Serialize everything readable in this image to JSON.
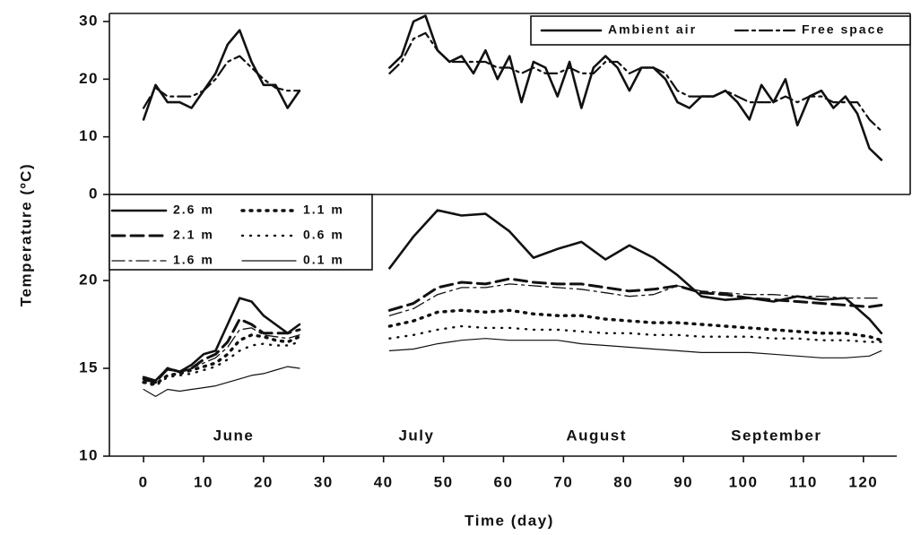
{
  "chart_data": [
    {
      "type": "line",
      "ylabel": "Temperature (ºC)",
      "x": [
        0,
        2,
        4,
        6,
        8,
        10,
        12,
        14,
        16,
        18,
        20,
        22,
        24,
        26,
        34,
        41,
        43,
        45,
        47,
        49,
        51,
        53,
        55,
        57,
        59,
        61,
        63,
        65,
        67,
        69,
        71,
        73,
        75,
        77,
        79,
        81,
        83,
        85,
        87,
        89,
        91,
        93,
        95,
        97,
        99,
        101,
        103,
        105,
        107,
        109,
        111,
        113,
        115,
        117,
        119,
        121,
        123
      ],
      "xlim": [
        -5.7,
        127.8
      ],
      "ylim": [
        0,
        31.4
      ],
      "yticks": [
        0,
        10,
        20,
        30
      ],
      "legend": "upper right",
      "series": [
        {
          "name": "Ambient air",
          "color": "#111111",
          "style": "solid",
          "width": 2.6,
          "values": [
            13,
            19,
            16,
            16,
            15,
            18,
            21,
            26,
            28.5,
            23,
            19,
            19,
            15,
            18,
            null,
            22,
            24,
            30,
            31,
            25,
            23,
            24,
            21,
            25,
            20,
            24,
            16,
            23,
            22,
            17,
            23,
            15,
            22,
            24,
            22,
            18,
            22,
            22,
            20,
            16,
            15,
            17,
            17,
            18,
            16,
            13,
            19,
            16,
            20,
            12,
            17,
            18,
            15,
            17,
            14,
            8,
            6
          ]
        },
        {
          "name": "Free space",
          "color": "#111111",
          "style": "dash-dot",
          "width": 2.2,
          "values": [
            15,
            18.5,
            17,
            17,
            17,
            18,
            20,
            23,
            24,
            22,
            20,
            18.5,
            18,
            18,
            null,
            21,
            23,
            27,
            28,
            25,
            23,
            23,
            23,
            23,
            22,
            22,
            21,
            22,
            21,
            21,
            22,
            21,
            21,
            23,
            23,
            21,
            22,
            22,
            21,
            18,
            17,
            17,
            17,
            18,
            17,
            16,
            16,
            16,
            17,
            16,
            17,
            17,
            16,
            16,
            16,
            13,
            11
          ]
        }
      ]
    },
    {
      "type": "line",
      "xlabel": "Time (day)",
      "x": [
        0,
        2,
        4,
        6,
        8,
        10,
        12,
        14,
        16,
        18,
        20,
        22,
        24,
        26,
        34,
        41,
        45,
        49,
        53,
        57,
        61,
        65,
        69,
        73,
        77,
        81,
        85,
        89,
        93,
        97,
        101,
        105,
        109,
        113,
        117,
        121,
        123
      ],
      "xlim": [
        -5.7,
        127.8
      ],
      "xticks": [
        0,
        10,
        20,
        30,
        40,
        50,
        60,
        70,
        80,
        90,
        100,
        110,
        120
      ],
      "ylim": [
        10,
        24.9
      ],
      "yticks": [
        10,
        15,
        20
      ],
      "legend": "upper left",
      "annotations": [
        {
          "text": "June",
          "x": 15
        },
        {
          "text": "July",
          "x": 45.5
        },
        {
          "text": "August",
          "x": 75.5
        },
        {
          "text": "September",
          "x": 105.5
        }
      ],
      "series": [
        {
          "name": "2.6 m",
          "color": "#111111",
          "style": "solid",
          "width": 2.6,
          "values": [
            14.5,
            14.3,
            15,
            14.8,
            15.2,
            15.8,
            16,
            17.5,
            19,
            18.8,
            18,
            17.5,
            17,
            17.5,
            null,
            20.7,
            22.5,
            24.0,
            23.7,
            23.8,
            22.8,
            21.3,
            21.8,
            22.2,
            21.2,
            22.0,
            21.3,
            20.3,
            19.1,
            18.9,
            19.0,
            18.8,
            19.1,
            18.9,
            19.0,
            17.8,
            17.0
          ]
        },
        {
          "name": "1.1 m",
          "color": "#111111",
          "style": "dotted-heavy",
          "width": 3.4,
          "values": [
            14.2,
            14.1,
            14.6,
            14.7,
            14.9,
            15.1,
            15.3,
            15.8,
            16.6,
            16.9,
            16.8,
            16.6,
            16.5,
            16.8,
            null,
            17.4,
            17.7,
            18.2,
            18.3,
            18.2,
            18.3,
            18.1,
            18.0,
            18.0,
            17.8,
            17.7,
            17.6,
            17.6,
            17.5,
            17.4,
            17.3,
            17.2,
            17.1,
            17.0,
            17.0,
            16.8,
            16.6
          ]
        },
        {
          "name": "2.1 m",
          "color": "#111111",
          "style": "dashed",
          "width": 3,
          "values": [
            14.4,
            14.2,
            15,
            14.8,
            15,
            15.5,
            15.8,
            16.5,
            17.8,
            17.5,
            17,
            17,
            17,
            17.2,
            null,
            18.3,
            18.7,
            19.6,
            19.9,
            19.8,
            20.1,
            19.9,
            19.8,
            19.8,
            19.6,
            19.4,
            19.5,
            19.7,
            19.3,
            19.2,
            19.0,
            18.9,
            18.8,
            18.7,
            18.6,
            18.5,
            18.6
          ]
        },
        {
          "name": "0.6 m",
          "color": "#111111",
          "style": "dotted",
          "width": 2.4,
          "values": [
            14.2,
            14.0,
            14.5,
            14.6,
            14.7,
            14.9,
            15.1,
            15.5,
            16.0,
            16.3,
            16.4,
            16.3,
            16.3,
            16.5,
            null,
            16.7,
            16.9,
            17.2,
            17.4,
            17.3,
            17.3,
            17.2,
            17.2,
            17.1,
            17.0,
            17.0,
            16.9,
            16.9,
            16.8,
            16.8,
            16.8,
            16.7,
            16.7,
            16.6,
            16.6,
            16.5,
            16.5
          ]
        },
        {
          "name": "1.6 m",
          "color": "#111111",
          "style": "dash-dot",
          "width": 1.3,
          "values": [
            14.3,
            14.2,
            14.9,
            14.8,
            15.0,
            15.3,
            15.6,
            16.2,
            17.2,
            17.3,
            16.9,
            16.8,
            16.7,
            16.9,
            null,
            18.0,
            18.4,
            19.2,
            19.6,
            19.6,
            19.8,
            19.7,
            19.6,
            19.5,
            19.3,
            19.1,
            19.2,
            19.7,
            19.4,
            19.3,
            19.2,
            19.2,
            19.1,
            19.1,
            19.0,
            19.0,
            19.0
          ]
        },
        {
          "name": "0.1 m",
          "color": "#111111",
          "style": "solid",
          "width": 1.2,
          "values": [
            13.8,
            13.4,
            13.8,
            13.7,
            13.8,
            13.9,
            14,
            14.2,
            14.4,
            14.6,
            14.7,
            14.9,
            15.1,
            15,
            null,
            16.0,
            16.1,
            16.4,
            16.6,
            16.7,
            16.6,
            16.6,
            16.6,
            16.4,
            16.3,
            16.2,
            16.1,
            16.0,
            15.9,
            15.9,
            15.9,
            15.8,
            15.7,
            15.6,
            15.6,
            15.7,
            16.0
          ]
        }
      ]
    }
  ]
}
